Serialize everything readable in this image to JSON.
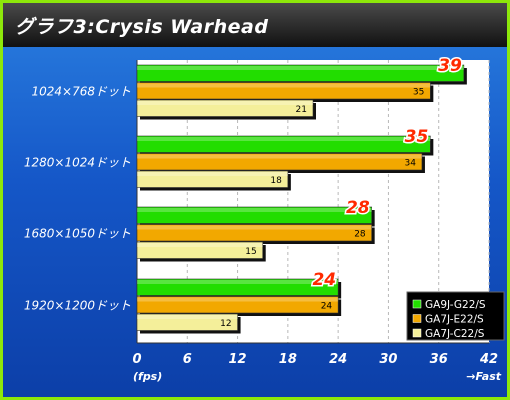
{
  "title": "グラフ3:Crysis Warhead",
  "chart_data": {
    "type": "bar",
    "orientation": "horizontal",
    "title": "グラフ3:Crysis Warhead",
    "xlabel": "(fps)",
    "x_note": "→Fast",
    "xlim": [
      0,
      42
    ],
    "xticks": [
      "0",
      "6",
      "12",
      "18",
      "24",
      "30",
      "36",
      "42"
    ],
    "grid": true,
    "legend_position": "bottom-right",
    "categories": [
      "1024×768ドット",
      "1280×1024ドット",
      "1680×1050ドット",
      "1920×1200ドット"
    ],
    "series": [
      {
        "name": "GA9J-G22/S",
        "color": "#22dd00",
        "highlight": true,
        "values": [
          39,
          35,
          28,
          24
        ]
      },
      {
        "name": "GA7J-E22/S",
        "color": "#f2a800",
        "highlight": false,
        "values": [
          35,
          34,
          28,
          24
        ]
      },
      {
        "name": "GA7J-C22/S",
        "color": "#f4ef9a",
        "highlight": false,
        "values": [
          21,
          18,
          15,
          12
        ]
      }
    ]
  }
}
